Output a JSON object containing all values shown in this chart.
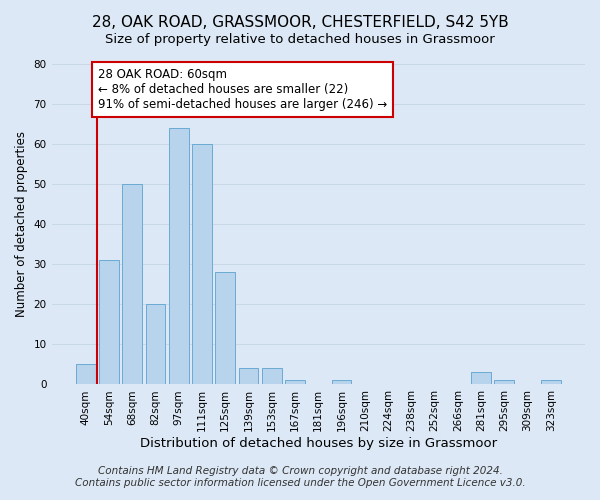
{
  "title": "28, OAK ROAD, GRASSMOOR, CHESTERFIELD, S42 5YB",
  "subtitle": "Size of property relative to detached houses in Grassmoor",
  "xlabel": "Distribution of detached houses by size in Grassmoor",
  "ylabel": "Number of detached properties",
  "bar_labels": [
    "40sqm",
    "54sqm",
    "68sqm",
    "82sqm",
    "97sqm",
    "111sqm",
    "125sqm",
    "139sqm",
    "153sqm",
    "167sqm",
    "181sqm",
    "196sqm",
    "210sqm",
    "224sqm",
    "238sqm",
    "252sqm",
    "266sqm",
    "281sqm",
    "295sqm",
    "309sqm",
    "323sqm"
  ],
  "bar_heights": [
    5,
    31,
    50,
    20,
    64,
    60,
    28,
    4,
    4,
    1,
    0,
    1,
    0,
    0,
    0,
    0,
    0,
    3,
    1,
    0,
    1
  ],
  "bar_color": "#b8d4ec",
  "bar_edge_color": "#6aaad4",
  "marker_line_color": "#cc0000",
  "annotation_line1": "28 OAK ROAD: 60sqm",
  "annotation_line2": "← 8% of detached houses are smaller (22)",
  "annotation_line3": "91% of semi-detached houses are larger (246) →",
  "annotation_box_color": "#ffffff",
  "annotation_box_edge_color": "#cc0000",
  "ylim": [
    0,
    80
  ],
  "yticks": [
    0,
    10,
    20,
    30,
    40,
    50,
    60,
    70,
    80
  ],
  "footer_line1": "Contains HM Land Registry data © Crown copyright and database right 2024.",
  "footer_line2": "Contains public sector information licensed under the Open Government Licence v3.0.",
  "bg_color": "#dce8f5",
  "plot_bg_color": "#dce8f5",
  "title_fontsize": 11,
  "xlabel_fontsize": 9.5,
  "ylabel_fontsize": 8.5,
  "annotation_fontsize": 8.5,
  "tick_fontsize": 7.5,
  "footer_fontsize": 7.5
}
